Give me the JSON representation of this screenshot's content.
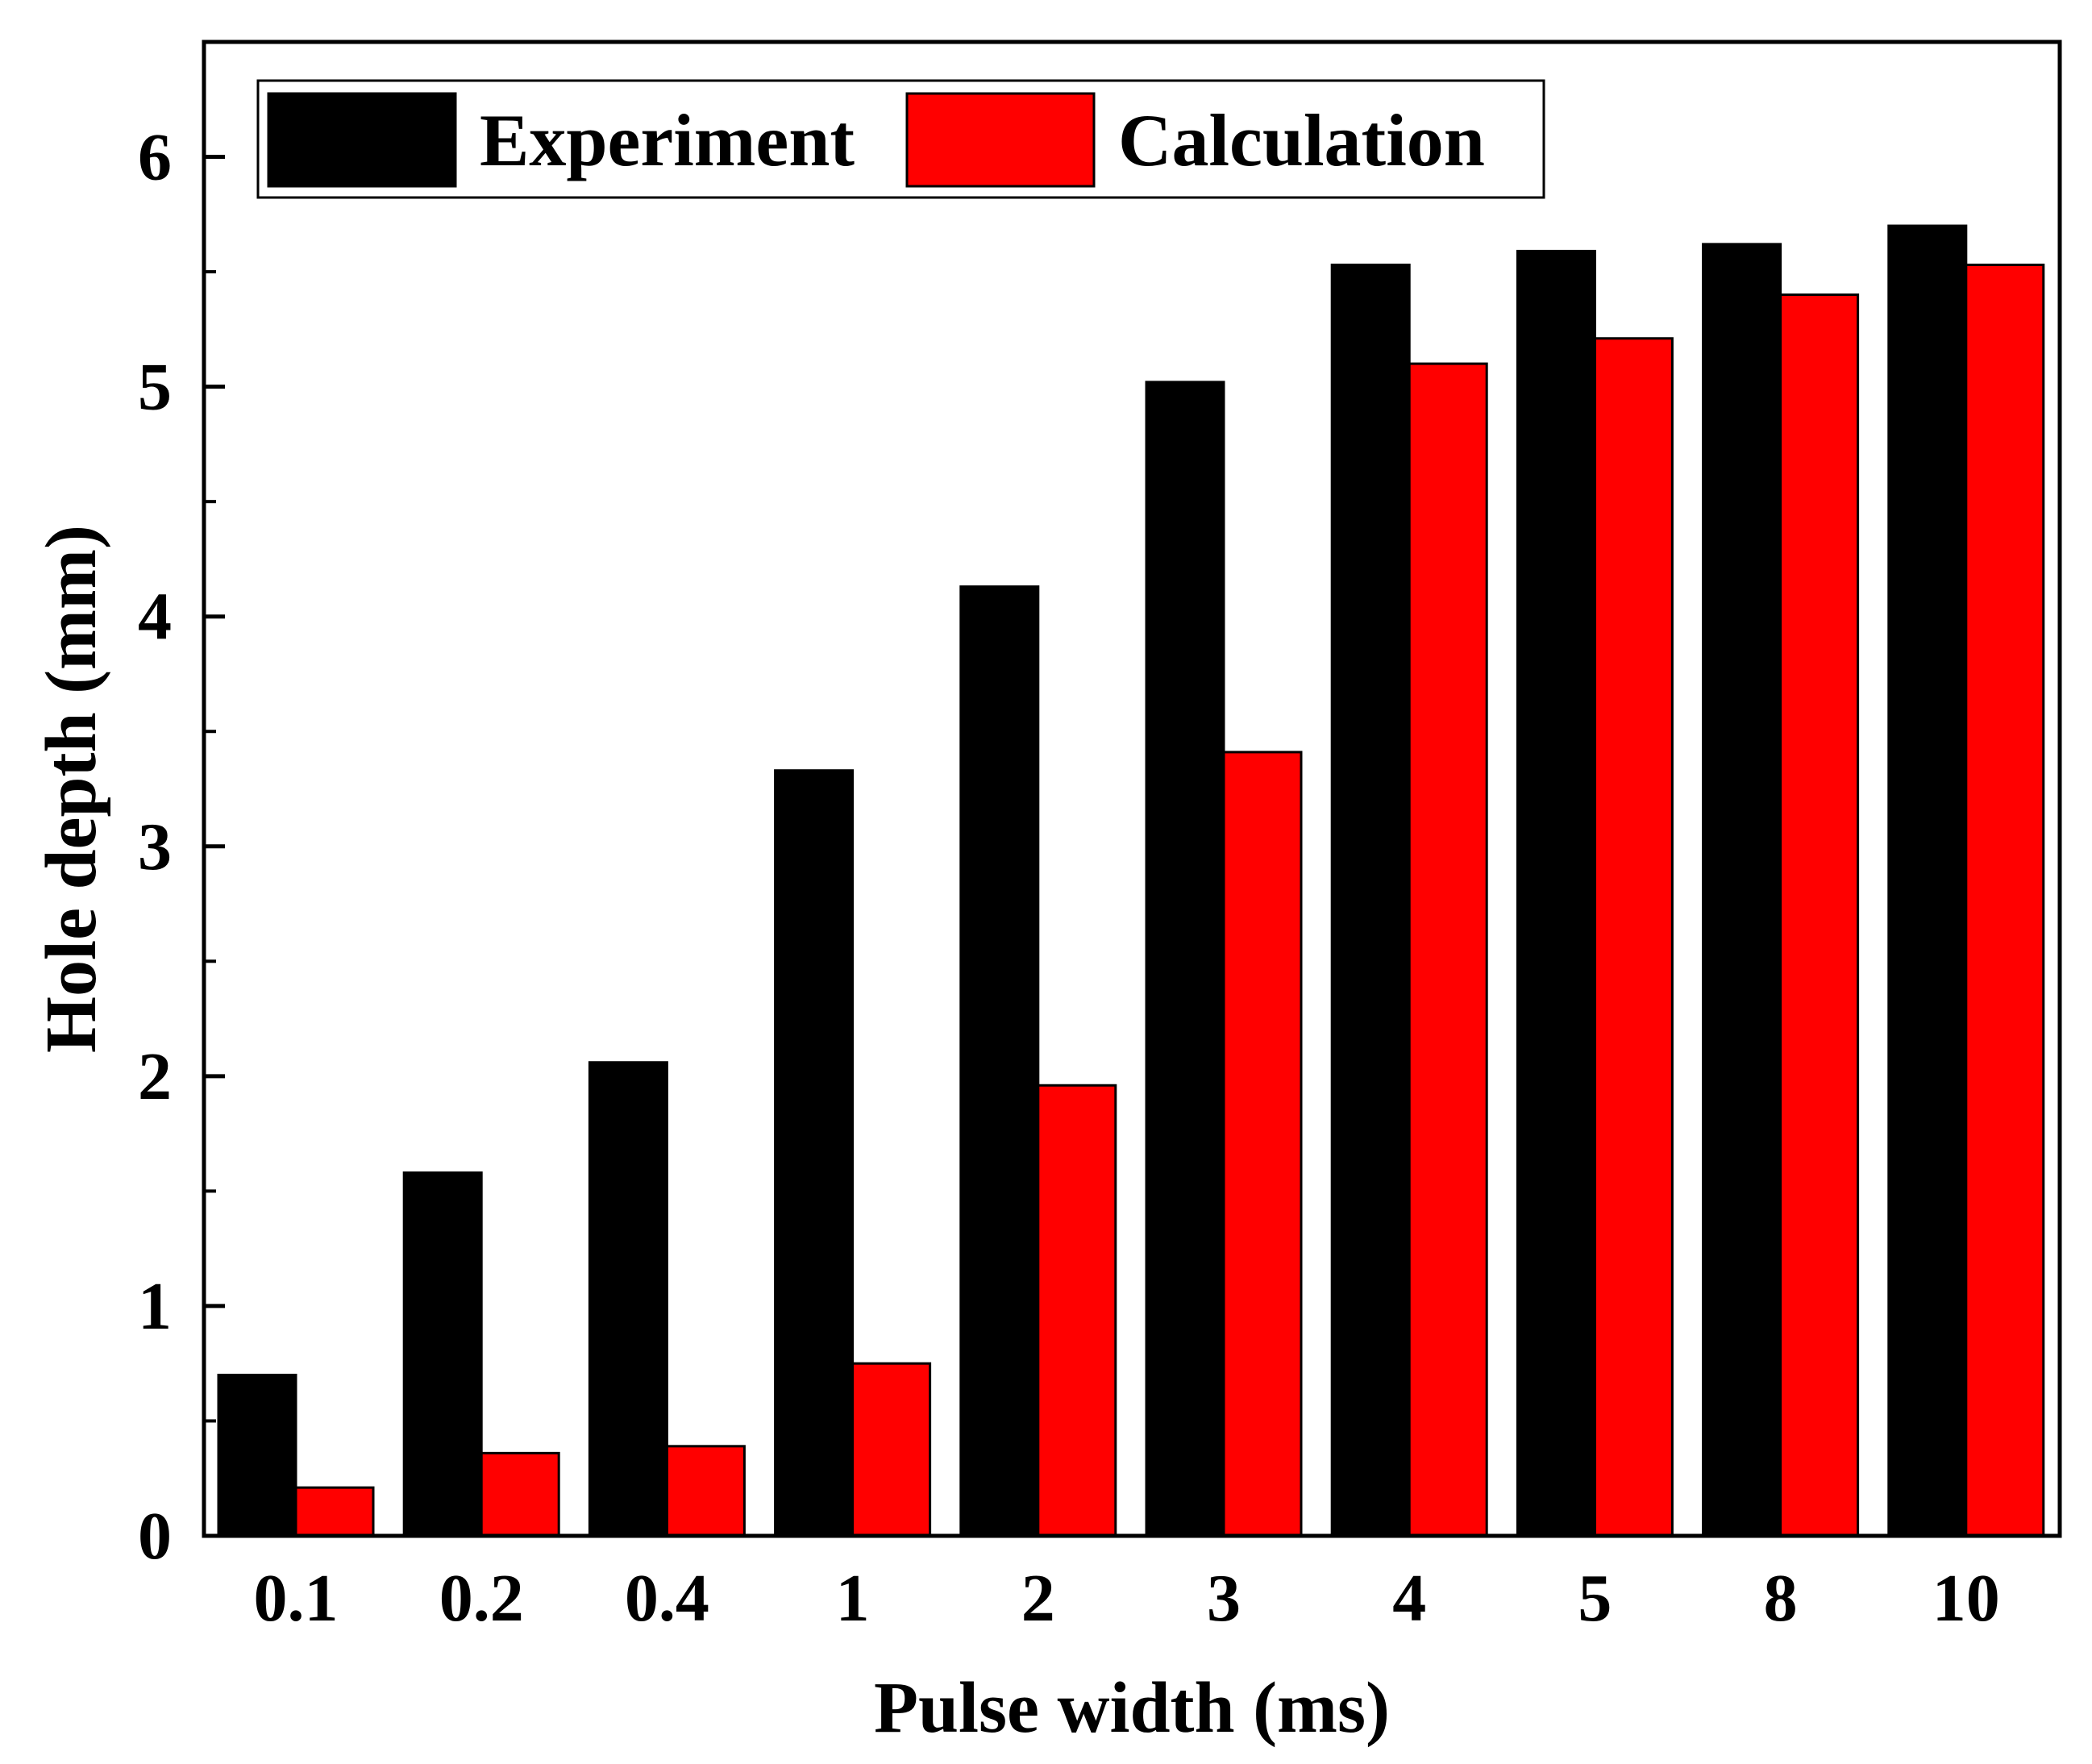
{
  "chart_data": {
    "type": "bar",
    "title": "",
    "xlabel": "Pulse width (ms)",
    "ylabel": "Hole depth (mm)",
    "categories": [
      "0.1",
      "0.2",
      "0.4",
      "1",
      "2",
      "3",
      "4",
      "5",
      "8",
      "10"
    ],
    "series": [
      {
        "name": "Experiment",
        "color": "#000000",
        "values": [
          0.7,
          1.58,
          2.06,
          3.33,
          4.13,
          5.02,
          5.53,
          5.59,
          5.62,
          5.7
        ]
      },
      {
        "name": "Calculation",
        "color": "#ff0000",
        "values": [
          0.21,
          0.36,
          0.39,
          0.75,
          1.96,
          3.41,
          5.1,
          5.21,
          5.4,
          5.53
        ]
      }
    ],
    "ylim": [
      0,
      6.5
    ],
    "yticks": [
      "0",
      "1",
      "2",
      "3",
      "4",
      "5",
      "6"
    ],
    "grid": false,
    "legend_position": "top-left"
  }
}
